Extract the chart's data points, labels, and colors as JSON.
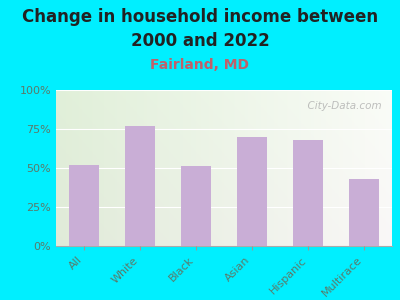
{
  "title_line1": "Change in household income between",
  "title_line2": "2000 and 2022",
  "subtitle": "Fairland, MD",
  "categories": [
    "All",
    "White",
    "Black",
    "Asian",
    "Hispanic",
    "Multirace"
  ],
  "values": [
    52,
    77,
    51,
    70,
    68,
    43
  ],
  "bar_color": "#c9aed6",
  "title_fontsize": 12,
  "subtitle_fontsize": 10,
  "subtitle_color": "#c0606a",
  "tick_label_color": "#5a7a6a",
  "background_outer": "#00efff",
  "ylim": [
    0,
    100
  ],
  "yticks": [
    0,
    25,
    50,
    75,
    100
  ],
  "ytick_labels": [
    "0%",
    "25%",
    "50%",
    "75%",
    "100%"
  ],
  "watermark": "  City-Data.com"
}
